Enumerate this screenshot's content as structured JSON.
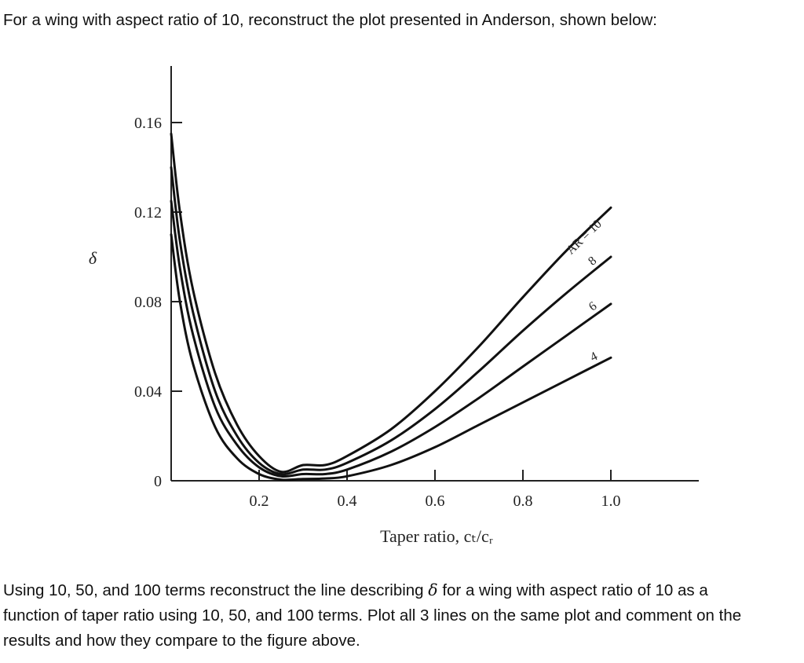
{
  "intro_text": "For a wing with aspect ratio of 10, reconstruct the plot presented in Anderson, shown below:",
  "question": {
    "line1_a": "Using 10, 50, and 100 terms reconstruct the line describing ",
    "symbol": "δ",
    "line1_b": " for a wing with aspect ratio of 10 as a",
    "line2": "function of taper ratio using 10, 50, and 100 terms. Plot all 3 lines on the same plot and comment on the",
    "line3": "results and how they compare to the figure above."
  },
  "chart_data": {
    "type": "line",
    "xlabel": "Taper ratio, cₜ/cᵣ",
    "ylabel": "δ",
    "xlim": [
      0.0,
      1.08
    ],
    "ylim": [
      0.0,
      0.17
    ],
    "x_ticks": [
      {
        "value": 0.2,
        "label": "0.2"
      },
      {
        "value": 0.4,
        "label": "0.4"
      },
      {
        "value": 0.6,
        "label": "0.6"
      },
      {
        "value": 0.8,
        "label": "0.8"
      },
      {
        "value": 1.0,
        "label": "1.0"
      }
    ],
    "y_ticks": [
      {
        "value": 0.0,
        "label": "0"
      },
      {
        "value": 0.04,
        "label": "0.04"
      },
      {
        "value": 0.08,
        "label": "0.08"
      },
      {
        "value": 0.12,
        "label": "0.12"
      },
      {
        "value": 0.16,
        "label": "0.16"
      }
    ],
    "series": [
      {
        "name": "AR = 10",
        "x": [
          0.0,
          0.02,
          0.05,
          0.1,
          0.15,
          0.2,
          0.25,
          0.3,
          0.35,
          0.4,
          0.5,
          0.6,
          0.7,
          0.8,
          0.9,
          1.0
        ],
        "y": [
          0.155,
          0.12,
          0.085,
          0.048,
          0.025,
          0.011,
          0.004,
          0.007,
          0.007,
          0.011,
          0.023,
          0.04,
          0.06,
          0.082,
          0.103,
          0.122
        ]
      },
      {
        "name": "8",
        "x": [
          0.0,
          0.02,
          0.05,
          0.1,
          0.15,
          0.2,
          0.25,
          0.3,
          0.35,
          0.4,
          0.5,
          0.6,
          0.7,
          0.8,
          0.9,
          1.0
        ],
        "y": [
          0.14,
          0.107,
          0.075,
          0.04,
          0.02,
          0.008,
          0.003,
          0.005,
          0.005,
          0.008,
          0.018,
          0.032,
          0.049,
          0.067,
          0.084,
          0.1
        ]
      },
      {
        "name": "6",
        "x": [
          0.0,
          0.02,
          0.05,
          0.1,
          0.15,
          0.2,
          0.25,
          0.3,
          0.35,
          0.4,
          0.5,
          0.6,
          0.7,
          0.8,
          0.9,
          1.0
        ],
        "y": [
          0.125,
          0.095,
          0.065,
          0.033,
          0.016,
          0.006,
          0.002,
          0.003,
          0.003,
          0.005,
          0.013,
          0.024,
          0.037,
          0.051,
          0.065,
          0.079
        ]
      },
      {
        "name": "4",
        "x": [
          0.0,
          0.02,
          0.05,
          0.1,
          0.15,
          0.2,
          0.25,
          0.3,
          0.35,
          0.4,
          0.5,
          0.6,
          0.7,
          0.8,
          0.9,
          1.0
        ],
        "y": [
          0.11,
          0.08,
          0.052,
          0.024,
          0.01,
          0.003,
          0.0005,
          0.0008,
          0.001,
          0.002,
          0.007,
          0.015,
          0.025,
          0.035,
          0.045,
          0.055
        ]
      }
    ],
    "annotations": [
      {
        "text": "AR = 10",
        "series": "AR = 10"
      },
      {
        "text": "8",
        "series": "8"
      },
      {
        "text": "6",
        "series": "6"
      },
      {
        "text": "4",
        "series": "4"
      }
    ],
    "grid": false,
    "legend": "none"
  }
}
